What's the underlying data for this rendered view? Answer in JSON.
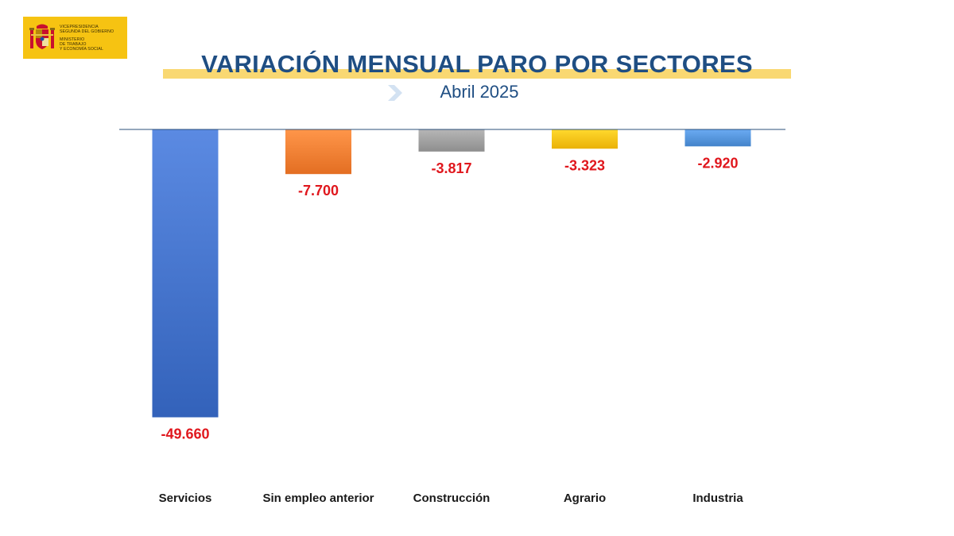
{
  "logo": {
    "line1": "Vicepresidencia",
    "line2": "Segunda del Gobierno",
    "line3": "Ministerio",
    "line4": "de Trabajo",
    "line5": "y Economía Social",
    "brand_color": "#f6c312",
    "icon": "coat-of-arms-icon"
  },
  "chart_data": {
    "type": "bar",
    "title": "VARIACIÓN MENSUAL PARO POR SECTORES",
    "subtitle": "Abril 2025",
    "categories": [
      "Servicios",
      "Sin empleo anterior",
      "Construcción",
      "Agrario",
      "Industria"
    ],
    "values": [
      -49660,
      -7700,
      -3817,
      -3323,
      -2920
    ],
    "value_labels": [
      "-49.660",
      "-7.700",
      "-3.817",
      "-3.323",
      "-2.920"
    ],
    "colors": [
      "#3f6ec6",
      "#ef7a2e",
      "#9a9a9a",
      "#f6bd12",
      "#4f8fd6"
    ],
    "ylim": [
      -50000,
      0
    ],
    "grid": false,
    "legend": "none"
  }
}
